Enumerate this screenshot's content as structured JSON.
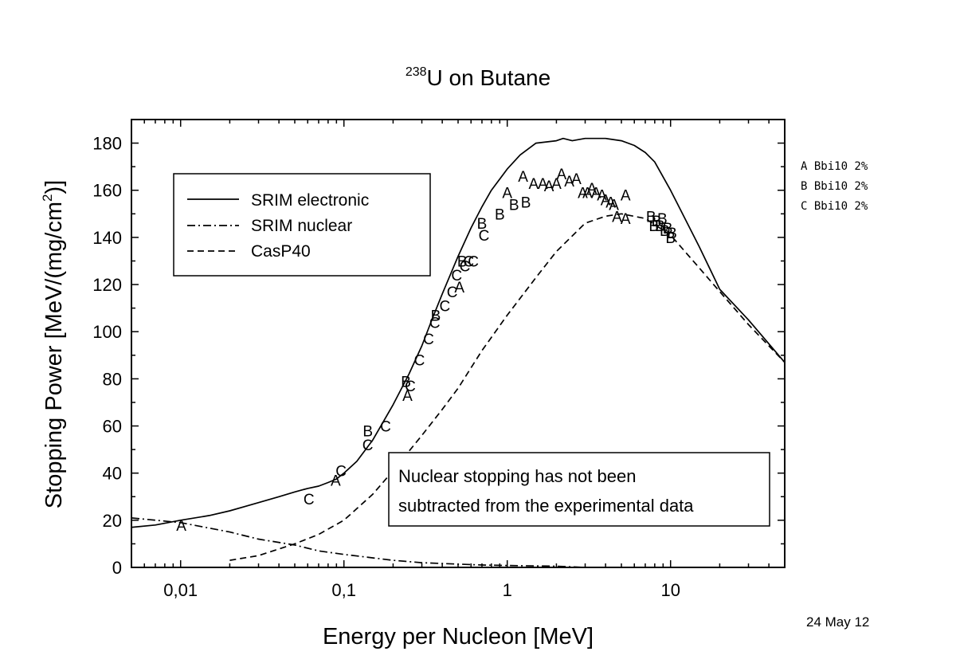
{
  "chart_data": {
    "type": "line",
    "title": {
      "superscript": "238",
      "text": "U on Butane"
    },
    "xlabel": "Energy per Nucleon [MeV]",
    "ylabel": {
      "main": "Stopping Power [MeV/(mg/cm",
      "sup": "2",
      "end": ")]"
    },
    "x_scale": "log",
    "xlim": [
      0.005,
      50
    ],
    "ylim": [
      0,
      190
    ],
    "x_ticks": [
      {
        "value": 0.01,
        "label": "0,01"
      },
      {
        "value": 0.1,
        "label": "0,1"
      },
      {
        "value": 1,
        "label": "1"
      },
      {
        "value": 10,
        "label": "10"
      }
    ],
    "y_ticks": [
      0,
      20,
      40,
      60,
      80,
      100,
      120,
      140,
      160,
      180
    ],
    "legend_position": "upper-left",
    "series": [
      {
        "name": "SRIM electronic",
        "style": "solid",
        "x": [
          0.005,
          0.007,
          0.01,
          0.015,
          0.02,
          0.03,
          0.04,
          0.05,
          0.06,
          0.07,
          0.08,
          0.09,
          0.1,
          0.12,
          0.15,
          0.2,
          0.25,
          0.3,
          0.35,
          0.4,
          0.5,
          0.6,
          0.7,
          0.8,
          1,
          1.2,
          1.5,
          2,
          2.2,
          2.5,
          3,
          4,
          5,
          6,
          7,
          8,
          10,
          15,
          20,
          30,
          50
        ],
        "y": [
          17,
          18,
          20,
          22,
          24,
          27.5,
          30,
          32,
          33.5,
          34.5,
          36,
          37.5,
          40,
          45,
          54,
          69,
          82,
          94,
          106,
          116,
          132,
          144,
          153,
          160,
          169,
          175,
          180,
          181,
          182,
          181,
          182,
          182,
          181,
          179,
          176,
          172,
          160,
          136,
          118,
          105,
          87
        ]
      },
      {
        "name": "SRIM nuclear",
        "style": "dashdot",
        "x": [
          0.005,
          0.01,
          0.02,
          0.03,
          0.05,
          0.07,
          0.1,
          0.2,
          0.3,
          0.5,
          0.7,
          1,
          2,
          3
        ],
        "y": [
          21,
          19,
          15,
          12,
          9.5,
          7,
          5.5,
          3,
          2,
          1.4,
          1,
          0.8,
          0.5,
          0
        ]
      },
      {
        "name": "CasP40",
        "style": "dashed",
        "x": [
          0.02,
          0.03,
          0.05,
          0.07,
          0.1,
          0.15,
          0.2,
          0.3,
          0.4,
          0.5,
          0.7,
          1,
          1.5,
          2,
          3,
          4,
          5,
          7,
          10,
          15,
          20,
          30,
          50
        ],
        "y": [
          3,
          5,
          10,
          14,
          20,
          31,
          41,
          56,
          67,
          76,
          92,
          107,
          123,
          134,
          146,
          149,
          150,
          148,
          141,
          127,
          117,
          103,
          87
        ]
      }
    ],
    "experimental_points": [
      {
        "label": "A",
        "x": 0.0101,
        "y": 18
      },
      {
        "label": "C",
        "x": 0.061,
        "y": 29
      },
      {
        "label": "A",
        "x": 0.089,
        "y": 37
      },
      {
        "label": "C",
        "x": 0.096,
        "y": 41
      },
      {
        "label": "B",
        "x": 0.14,
        "y": 58
      },
      {
        "label": "C",
        "x": 0.14,
        "y": 52
      },
      {
        "label": "C",
        "x": 0.18,
        "y": 60
      },
      {
        "label": "B",
        "x": 0.24,
        "y": 79
      },
      {
        "label": "C",
        "x": 0.255,
        "y": 77
      },
      {
        "label": "A",
        "x": 0.245,
        "y": 73
      },
      {
        "label": "C",
        "x": 0.29,
        "y": 88
      },
      {
        "label": "C",
        "x": 0.33,
        "y": 97
      },
      {
        "label": "C",
        "x": 0.36,
        "y": 104
      },
      {
        "label": "B",
        "x": 0.365,
        "y": 107
      },
      {
        "label": "C",
        "x": 0.415,
        "y": 111
      },
      {
        "label": "C",
        "x": 0.46,
        "y": 117
      },
      {
        "label": "A",
        "x": 0.51,
        "y": 119
      },
      {
        "label": "C",
        "x": 0.49,
        "y": 124
      },
      {
        "label": "B",
        "x": 0.53,
        "y": 130
      },
      {
        "label": "C",
        "x": 0.55,
        "y": 128
      },
      {
        "label": "C",
        "x": 0.58,
        "y": 130
      },
      {
        "label": "C",
        "x": 0.62,
        "y": 130
      },
      {
        "label": "B",
        "x": 0.7,
        "y": 146
      },
      {
        "label": "C",
        "x": 0.72,
        "y": 141
      },
      {
        "label": "B",
        "x": 0.9,
        "y": 150
      },
      {
        "label": "A",
        "x": 1.0,
        "y": 159
      },
      {
        "label": "B",
        "x": 1.1,
        "y": 154
      },
      {
        "label": "B",
        "x": 1.3,
        "y": 155
      },
      {
        "label": "A",
        "x": 1.25,
        "y": 166
      },
      {
        "label": "A",
        "x": 1.45,
        "y": 163
      },
      {
        "label": "A",
        "x": 1.65,
        "y": 163
      },
      {
        "label": "A",
        "x": 1.8,
        "y": 162
      },
      {
        "label": "A",
        "x": 2.0,
        "y": 163
      },
      {
        "label": "A",
        "x": 2.15,
        "y": 167
      },
      {
        "label": "A",
        "x": 2.4,
        "y": 164
      },
      {
        "label": "A",
        "x": 2.65,
        "y": 165
      },
      {
        "label": "A",
        "x": 2.9,
        "y": 159
      },
      {
        "label": "A",
        "x": 3.1,
        "y": 159
      },
      {
        "label": "A",
        "x": 3.3,
        "y": 161
      },
      {
        "label": "A",
        "x": 3.5,
        "y": 159
      },
      {
        "label": "A",
        "x": 3.8,
        "y": 158
      },
      {
        "label": "A",
        "x": 4.0,
        "y": 156
      },
      {
        "label": "A",
        "x": 4.3,
        "y": 155
      },
      {
        "label": "A",
        "x": 4.5,
        "y": 154
      },
      {
        "label": "A",
        "x": 4.7,
        "y": 149
      },
      {
        "label": "A",
        "x": 5.3,
        "y": 148
      },
      {
        "label": "A",
        "x": 5.3,
        "y": 158
      },
      {
        "label": "B",
        "x": 7.6,
        "y": 149
      },
      {
        "label": "B",
        "x": 7.9,
        "y": 145
      },
      {
        "label": "B",
        "x": 8.2,
        "y": 147
      },
      {
        "label": "B",
        "x": 8.6,
        "y": 145
      },
      {
        "label": "B",
        "x": 8.9,
        "y": 148
      },
      {
        "label": "B",
        "x": 9.2,
        "y": 143
      },
      {
        "label": "B",
        "x": 9.6,
        "y": 144
      },
      {
        "label": "B",
        "x": 10.0,
        "y": 140
      },
      {
        "label": "B",
        "x": 10.2,
        "y": 142
      }
    ]
  },
  "legend": [
    "SRIM electronic",
    "SRIM nuclear",
    "CasP40"
  ],
  "annotation": [
    "Nuclear stopping has not been",
    "subtracted from the experimental data"
  ],
  "side_legend": [
    "A Bbi10 2%",
    "B Bbi10 2%",
    "C Bbi10 2%"
  ],
  "date": "24 May 12"
}
